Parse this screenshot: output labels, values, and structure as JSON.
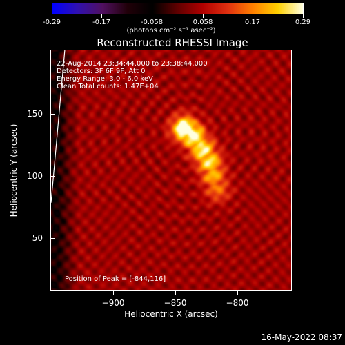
{
  "colorbar": {
    "ticks": [
      "-0.29",
      "-0.17",
      "-0.058",
      "0.058",
      "0.17",
      "0.29"
    ],
    "tick_values": [
      -0.29,
      -0.17,
      -0.058,
      0.058,
      0.17,
      0.29
    ],
    "range": [
      -0.29,
      0.29
    ],
    "units": "(photons cm⁻² s⁻¹ asec⁻²)",
    "palette": [
      "#0000ff",
      "#3010b0",
      "#501060",
      "#200008",
      "#000000",
      "#600000",
      "#b00000",
      "#e03010",
      "#ff8000",
      "#ffd000",
      "#ffffe0"
    ]
  },
  "title": "Reconstructed RHESSI Image",
  "info": {
    "time_range": "22-Aug-2014 23:34:44.000 to 23:38:44.000",
    "detectors": "Detectors: 3F 6F 9F, Att 0",
    "energy": "Energy Range: 3.0 - 6.0 keV",
    "method": "Clean     Total counts: 1.47E+04",
    "peak": "Position of Peak = [-844,116]"
  },
  "chart_data": {
    "type": "heatmap",
    "title": "Reconstructed RHESSI Image",
    "xlabel": "Heliocentric X (arcsec)",
    "ylabel": "Heliocentric Y (arcsec)",
    "xlim": [
      -945,
      -770
    ],
    "ylim": [
      1,
      176
    ],
    "x_ticks": [
      -900,
      -850,
      -800
    ],
    "x_tick_labels": [
      "−900",
      "−850",
      "−800"
    ],
    "y_ticks": [
      50,
      100,
      150
    ],
    "y_tick_labels": [
      "50",
      "100",
      "150"
    ],
    "color_range": [
      -0.29,
      0.29
    ],
    "peak_position": [
      -844,
      116
    ],
    "source_ridge": [
      {
        "x": -848,
        "y": 119,
        "value": 0.29
      },
      {
        "x": -842,
        "y": 114,
        "value": 0.27
      },
      {
        "x": -835,
        "y": 104,
        "value": 0.24
      },
      {
        "x": -830,
        "y": 95,
        "value": 0.22
      },
      {
        "x": -827,
        "y": 85,
        "value": 0.17
      },
      {
        "x": -824,
        "y": 75,
        "value": 0.12
      }
    ],
    "limb_line": [
      {
        "x": -935,
        "y": 176
      },
      {
        "x": -945,
        "y": 65
      }
    ]
  },
  "footer": {
    "timestamp": "16-May-2022 08:37"
  }
}
